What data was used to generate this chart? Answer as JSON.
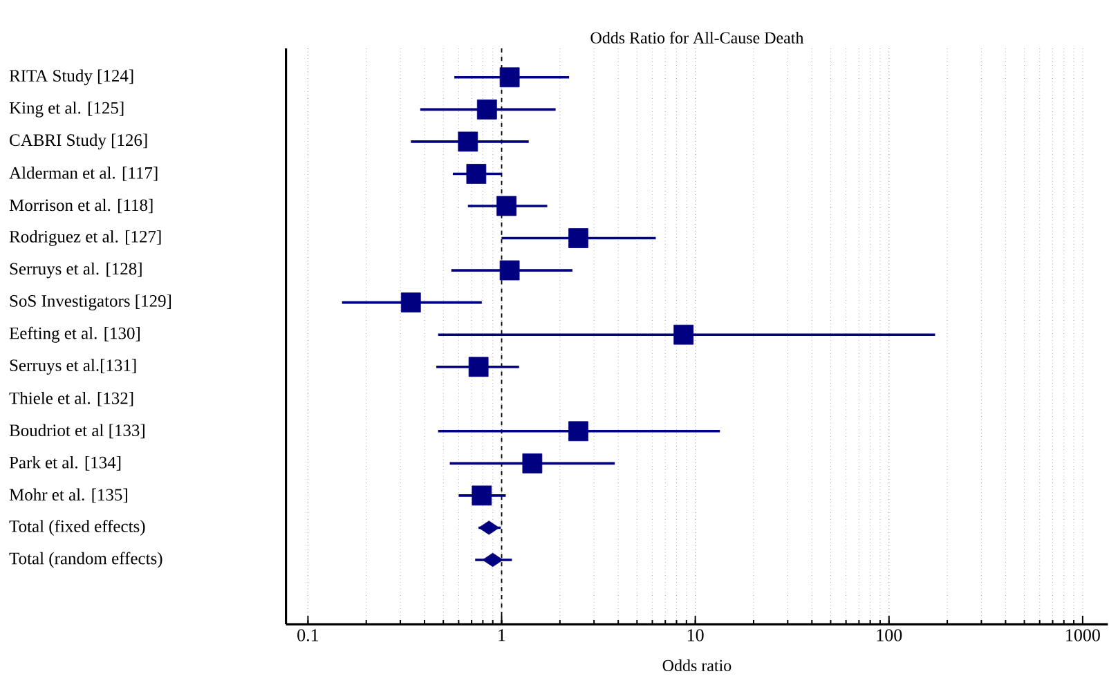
{
  "chart_data": {
    "type": "scatter",
    "orientation": "horizontal",
    "title": "Odds Ratio for All-Cause Death",
    "xlabel": "Odds ratio",
    "categories": [
      "RITA Study [124]",
      "King et al. [125]",
      "CABRI Study [126]",
      "Alderman et al. [117]",
      "Morrison  et al. [118]",
      "Rodriguez et al. [127]",
      "Serruys et al. [128]",
      "SoS Investigators [129]",
      "Eefting et al. [130]",
      "Serruys et al.[131]",
      "Thiele et al. [132]",
      "Boudriot et al [133]",
      "Park et al. [134]",
      "Mohr et al. [135]",
      "Total (fixed effects)",
      "Total (random effects)"
    ],
    "log": "x",
    "xlim": [
      0.077,
      1350
    ],
    "xticks": [
      0.1,
      1,
      10,
      100,
      1000
    ],
    "grid": "x",
    "marker": "square",
    "series": [
      {
        "color": "#000080",
        "values": [
          1.1,
          0.84,
          0.67,
          0.74,
          1.06,
          2.49,
          1.1,
          0.34,
          8.7,
          0.76,
          null,
          2.49,
          1.44,
          0.79,
          null,
          null
        ],
        "errors": [
          [
            0.57,
            2.23
          ],
          [
            0.38,
            1.9
          ],
          [
            0.34,
            1.38
          ],
          [
            0.56,
            1.0
          ],
          [
            0.67,
            1.72
          ],
          [
            1.0,
            6.25
          ],
          [
            0.55,
            2.32
          ],
          [
            0.15,
            0.79
          ],
          [
            0.47,
            173
          ],
          [
            0.46,
            1.23
          ],
          null,
          [
            0.47,
            13.4
          ],
          [
            0.54,
            3.84
          ],
          [
            0.6,
            1.05
          ],
          null,
          null
        ]
      },
      {
        "color": "#000080",
        "marker": "diamond",
        "values": [
          null,
          null,
          null,
          null,
          null,
          null,
          null,
          null,
          null,
          null,
          null,
          null,
          null,
          null,
          0.86,
          0.9
        ],
        "errors": [
          null,
          null,
          null,
          null,
          null,
          null,
          null,
          null,
          null,
          null,
          null,
          null,
          null,
          null,
          [
            0.76,
            0.99
          ],
          [
            0.73,
            1.13
          ]
        ]
      }
    ],
    "ref_lines": [
      {
        "axis": "x",
        "value": 1,
        "line_style": "dashed"
      }
    ]
  }
}
